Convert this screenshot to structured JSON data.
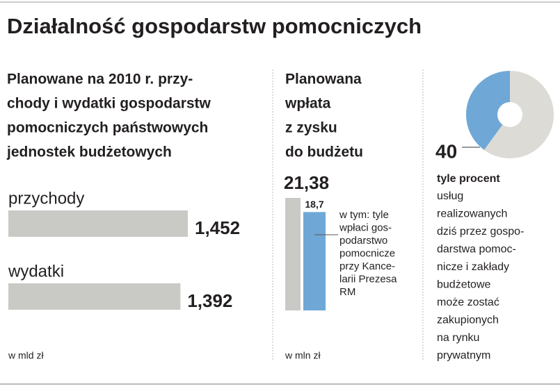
{
  "title": "Działalność gospodarstw pomocniczych",
  "chart_data": [
    {
      "type": "hbar",
      "title": [
        "Planowane na 2010 r. przy-",
        "chody i wydatki gospodarstw",
        "pomocniczych państwowych",
        "jednostek budżetowych"
      ],
      "categories": [
        "przychody",
        "wydatki"
      ],
      "values": [
        1.452,
        1.392
      ],
      "value_labels": [
        "1,452",
        "1,392"
      ],
      "unit": "w mld zł",
      "color": "#c9c9c5"
    },
    {
      "type": "bar",
      "title": [
        "Planowana",
        "wpłata",
        "z zysku",
        "do budżetu"
      ],
      "values": [
        21.38,
        18.7
      ],
      "value_labels": [
        "21,38",
        "18,7"
      ],
      "colors": [
        "#c9c9c5",
        "#6fa8d6"
      ],
      "annotation": [
        "w tym: tyle",
        "wpłaci gos-",
        "podarstwo",
        "pomocnicze",
        "przy Kance-",
        "larii Prezesa",
        "RM"
      ],
      "unit": "w mln zł"
    },
    {
      "type": "donut",
      "values": [
        40,
        60
      ],
      "colors": [
        "#6fa8d6",
        "#dcdbd5"
      ],
      "subtitle": "tyle procent",
      "annotation": [
        "usług",
        "realizowanych",
        "dziś przez gospo-",
        "darstwa pomoc-",
        "nicze i zakłady",
        "budżetowe",
        "może zostać",
        "zakupionych",
        "na rynku",
        "prywatnym"
      ]
    }
  ]
}
